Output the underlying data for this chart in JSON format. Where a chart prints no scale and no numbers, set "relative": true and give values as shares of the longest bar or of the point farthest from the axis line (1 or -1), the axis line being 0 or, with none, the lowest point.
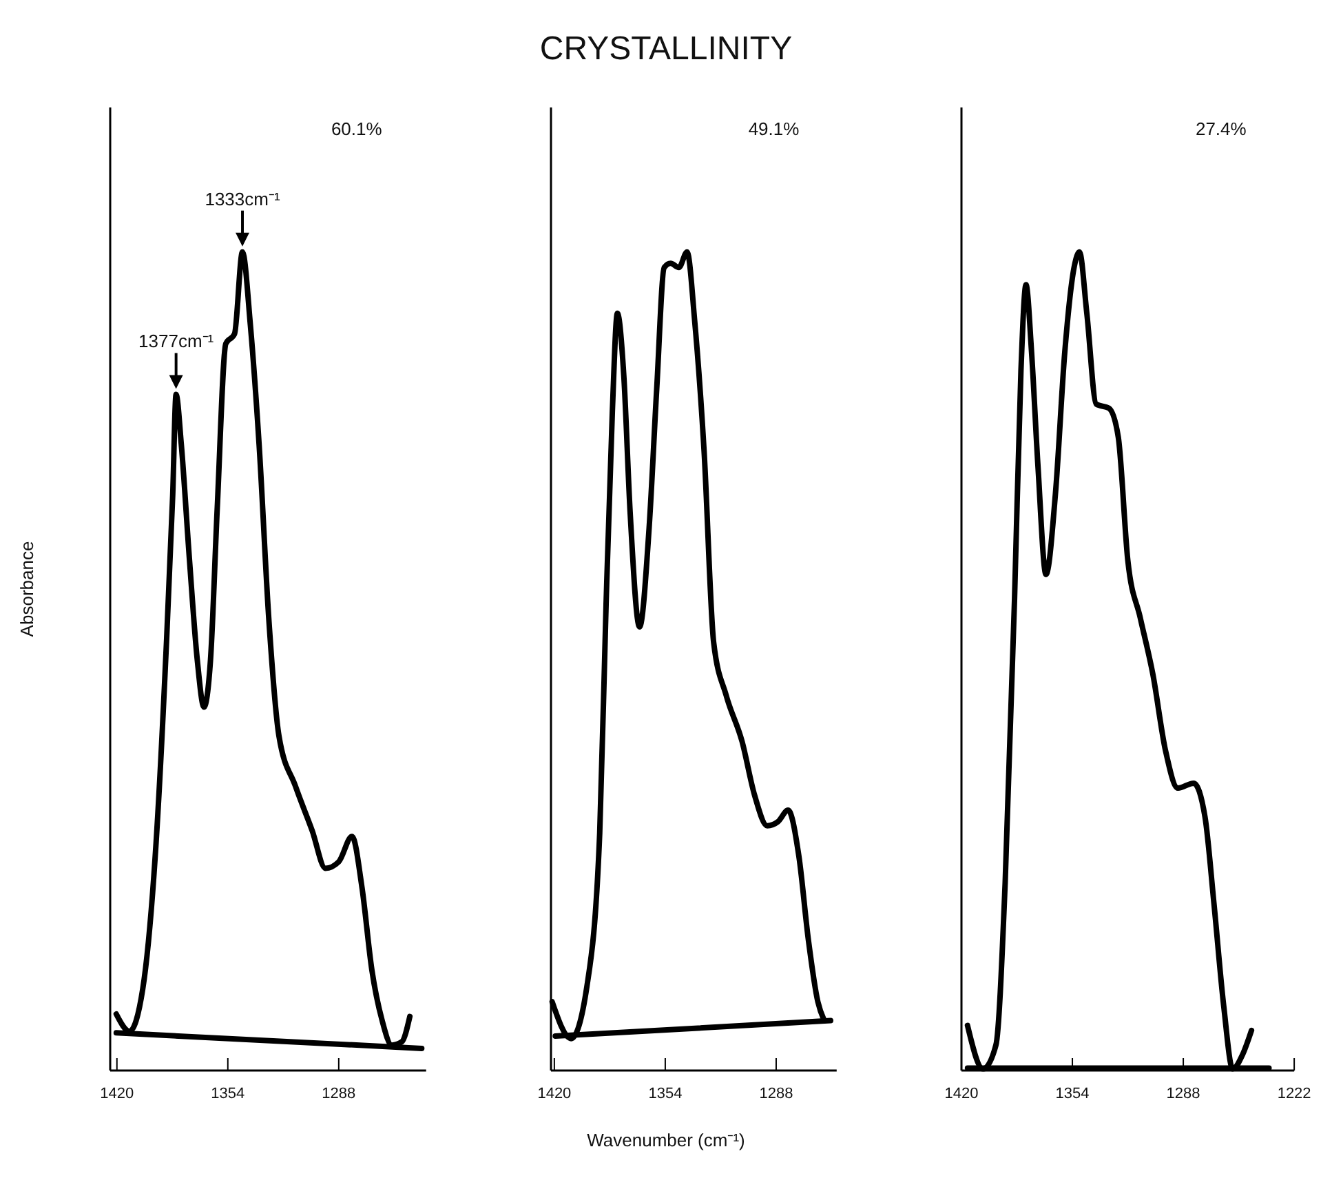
{
  "chart_data": [
    {
      "type": "line",
      "ylabel": "Absorbance",
      "relative": true,
      "xlim": [
        1424,
        1236
      ],
      "xticks": [
        1420,
        1354,
        1288
      ],
      "series": [
        {
          "type": "line",
          "color": "#000000",
          "x": [
            1420.4,
            1412.5,
            1404.6,
            1396.7,
            1390.8,
            1386.8,
            1384.8,
            1381.7,
            1376.9,
            1372.2,
            1368.2,
            1364.3,
            1360.3,
            1355.2,
            1350.0,
            1345.3,
            1340.6,
            1335.4,
            1329.5,
            1323.6,
            1313.7,
            1303.8,
            1295.9,
            1288.0,
            1280.1,
            1274.2,
            1268.3,
            1262.3,
            1256.4,
            1250.5,
            1245.7
          ],
          "values": [
            0.069,
            0.048,
            0.1,
            0.278,
            0.51,
            0.703,
            0.826,
            0.765,
            0.626,
            0.502,
            0.444,
            0.502,
            0.687,
            0.888,
            0.9,
            1.0,
            0.911,
            0.765,
            0.548,
            0.409,
            0.347,
            0.293,
            0.247,
            0.255,
            0.286,
            0.224,
            0.123,
            0.062,
            0.031,
            0.035,
            0.066
          ]
        },
        {
          "type": "line",
          "color": "#000000",
          "x": [
            1420.4,
            1238.6
          ],
          "values": [
            0.046,
            0.027
          ]
        }
      ],
      "annotations": [
        {
          "text": "1377cm⁻¹",
          "x": 1384.8,
          "y": 0.826
        },
        {
          "text": "1333cm⁻¹",
          "x": 1345.3,
          "y": 1.0
        },
        "60.1%"
      ]
    },
    {
      "type": "line",
      "title": "CRYSTALLINITY",
      "xlabel": "Wavenumber (cm⁻¹)",
      "relative": true,
      "xlim": [
        1422,
        1252
      ],
      "xticks": [
        1420,
        1354,
        1288
      ],
      "series": [
        {
          "type": "line",
          "color": "#000000",
          "x": [
            1421.3,
            1410.0,
            1400.6,
            1393.0,
            1389.2,
            1385.5,
            1382.5,
            1378.7,
            1374.9,
            1369.3,
            1363.6,
            1359.1,
            1354.6,
            1350.8,
            1345.9,
            1341.0,
            1336.5,
            1330.9,
            1325.2,
            1317.7,
            1308.3,
            1300.8,
            1293.3,
            1286.9,
            1280.9,
            1274.5,
            1268.8,
            1263.2,
            1259.4
          ],
          "values": [
            0.084,
            0.039,
            0.103,
            0.29,
            0.57,
            0.804,
            0.925,
            0.85,
            0.682,
            0.542,
            0.663,
            0.832,
            0.981,
            0.986,
            0.981,
            1.0,
            0.916,
            0.757,
            0.523,
            0.458,
            0.402,
            0.336,
            0.299,
            0.304,
            0.318,
            0.262,
            0.159,
            0.084,
            0.061
          ]
        },
        {
          "type": "line",
          "color": "#000000",
          "x": [
            1419.4,
            1255.6
          ],
          "values": [
            0.042,
            0.061
          ]
        }
      ],
      "annotations": [
        "49.1%"
      ]
    },
    {
      "type": "line",
      "relative": true,
      "xlim": [
        1420,
        1222
      ],
      "xticks": [
        1420,
        1354,
        1288,
        1222
      ],
      "series": [
        {
          "type": "line",
          "color": "#000000",
          "x": [
            1416.4,
            1407.1,
            1399.5,
            1394.0,
            1388.4,
            1384.6,
            1381.6,
            1378.3,
            1374.5,
            1369.7,
            1364.1,
            1358.5,
            1352.8,
            1349.8,
            1345.4,
            1339.8,
            1332.2,
            1326.7,
            1321.0,
            1313.6,
            1306.1,
            1298.6,
            1291.2,
            1281.8,
            1275.1,
            1269.8,
            1263.9,
            1258.6,
            1252.6,
            1247.4
          ],
          "values": [
            0.055,
            0.002,
            0.031,
            0.229,
            0.577,
            0.855,
            0.96,
            0.878,
            0.739,
            0.606,
            0.704,
            0.878,
            0.983,
            1.0,
            0.925,
            0.814,
            0.809,
            0.774,
            0.623,
            0.553,
            0.484,
            0.391,
            0.345,
            0.351,
            0.31,
            0.205,
            0.078,
            0.002,
            0.02,
            0.049
          ]
        },
        {
          "type": "line",
          "color": "#000000",
          "x": [
            1416.4,
            1237.0
          ],
          "values": [
            0.003,
            0.003
          ]
        }
      ],
      "annotations": [
        "27.4%"
      ]
    }
  ]
}
